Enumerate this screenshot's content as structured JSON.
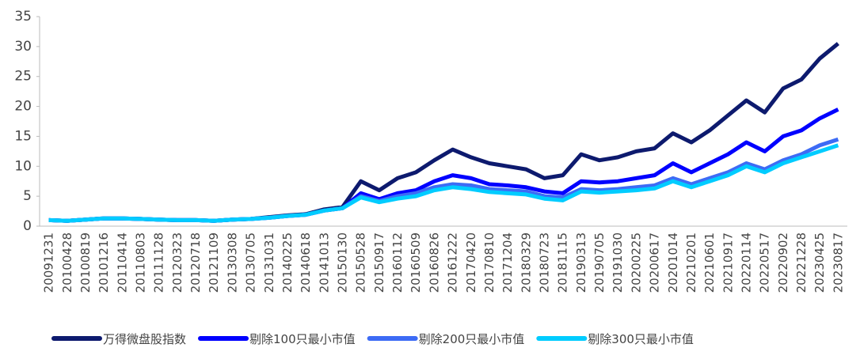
{
  "chart_data": {
    "type": "line",
    "categories": [
      "20091231",
      "20100428",
      "20100819",
      "20101216",
      "20110414",
      "20110803",
      "20111128",
      "20120323",
      "20120718",
      "20121109",
      "20130308",
      "20130705",
      "20131031",
      "20140225",
      "20140618",
      "20141013",
      "20150130",
      "20150528",
      "20150917",
      "20160112",
      "20160509",
      "20160826",
      "20161222",
      "20170420",
      "20170810",
      "20171204",
      "20180329",
      "20180723",
      "20181115",
      "20190313",
      "20190705",
      "20191030",
      "20200225",
      "20200617",
      "20201014",
      "20210201",
      "20210601",
      "20210917",
      "20220114",
      "20220517",
      "20220902",
      "20221228",
      "20230425",
      "20230817"
    ],
    "series": [
      {
        "name": "万得微盘股指数",
        "color": "#0d1a6e",
        "values": [
          1,
          0.9,
          1.1,
          1.3,
          1.3,
          1.2,
          1.1,
          1.0,
          1.0,
          0.9,
          1.1,
          1.2,
          1.5,
          1.8,
          2.0,
          2.8,
          3.2,
          7.5,
          6.0,
          8.0,
          9.0,
          11,
          12.8,
          11.5,
          10.5,
          10.0,
          9.5,
          8.0,
          8.5,
          12.0,
          11.0,
          11.5,
          12.5,
          13.0,
          15.5,
          14.0,
          16.0,
          18.5,
          21.0,
          19.0,
          23.0,
          24.5,
          28.0,
          30.5
        ]
      },
      {
        "name": "剔除100只最小市值",
        "color": "#0000ff",
        "values": [
          1,
          0.9,
          1.1,
          1.3,
          1.3,
          1.2,
          1.1,
          1.0,
          1.0,
          0.9,
          1.1,
          1.2,
          1.4,
          1.7,
          1.9,
          2.6,
          3.0,
          5.5,
          4.5,
          5.5,
          6.0,
          7.5,
          8.5,
          8.0,
          7.0,
          6.8,
          6.5,
          5.8,
          5.5,
          7.5,
          7.3,
          7.5,
          8.0,
          8.5,
          10.5,
          9.0,
          10.5,
          12.0,
          14.0,
          12.5,
          15.0,
          16.0,
          18.0,
          19.5
        ]
      },
      {
        "name": "剔除200只最小市值",
        "color": "#3d6bf5",
        "values": [
          1,
          0.9,
          1.1,
          1.3,
          1.3,
          1.2,
          1.1,
          1.0,
          1.0,
          0.9,
          1.1,
          1.2,
          1.4,
          1.7,
          1.9,
          2.6,
          3.0,
          5.0,
          4.2,
          5.0,
          5.5,
          6.5,
          7.0,
          6.8,
          6.2,
          6.0,
          5.8,
          5.0,
          4.8,
          6.2,
          6.0,
          6.2,
          6.5,
          6.8,
          8.0,
          7.0,
          8.0,
          9.0,
          10.5,
          9.5,
          11.0,
          12.0,
          13.5,
          14.5
        ]
      },
      {
        "name": "剔除300只最小市值",
        "color": "#00ccff",
        "values": [
          1,
          0.9,
          1.1,
          1.3,
          1.3,
          1.2,
          1.1,
          1.0,
          1.0,
          0.9,
          1.1,
          1.2,
          1.4,
          1.7,
          1.9,
          2.6,
          3.0,
          4.8,
          4.0,
          4.6,
          5.0,
          6.0,
          6.5,
          6.2,
          5.7,
          5.5,
          5.3,
          4.6,
          4.3,
          5.8,
          5.6,
          5.8,
          6.0,
          6.3,
          7.5,
          6.5,
          7.5,
          8.5,
          10.0,
          9.0,
          10.5,
          11.5,
          12.5,
          13.5
        ]
      }
    ],
    "ylim": [
      0,
      35
    ],
    "yticks": [
      0,
      5,
      10,
      15,
      20,
      25,
      30,
      35
    ],
    "grid": false
  }
}
